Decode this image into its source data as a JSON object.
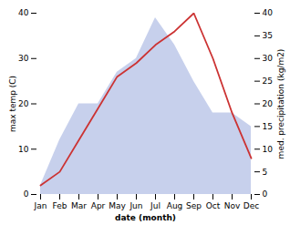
{
  "chart_data": {
    "type": "line",
    "categories": [
      "Jan",
      "Feb",
      "Mar",
      "Apr",
      "May",
      "Jun",
      "Jul",
      "Aug",
      "Sep",
      "Oct",
      "Nov",
      "Dec"
    ],
    "xlabel": "date (month)",
    "ylabel": "max temp (C)",
    "y2label": "med. precipitation (kg/m2)",
    "series": [
      {
        "type": "area",
        "axis": "y2",
        "color": "#99aadd",
        "values": [
          2,
          12,
          20,
          20,
          27,
          30,
          39,
          33,
          25,
          18,
          18,
          15
        ]
      },
      {
        "type": "line",
        "color": "#cc3333",
        "values": [
          2,
          5,
          12,
          19,
          26,
          29,
          33,
          36,
          40,
          30,
          18,
          8
        ]
      }
    ],
    "ylim": [
      0,
      40
    ],
    "yticks": [
      0,
      10,
      20,
      30,
      40
    ],
    "y2lim": [
      0,
      40
    ],
    "y2ticks": [
      0,
      5,
      10,
      15,
      20,
      25,
      30,
      35,
      40
    ],
    "grid": false
  }
}
